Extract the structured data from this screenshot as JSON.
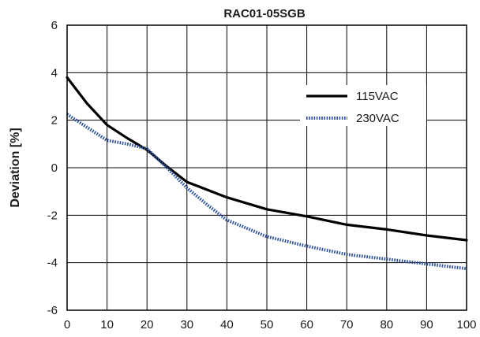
{
  "chart_data": {
    "type": "line",
    "title": "RAC01-05SGB",
    "xlabel": "",
    "ylabel": "Deviation [%]",
    "xlim": [
      0,
      100
    ],
    "ylim": [
      -6,
      6
    ],
    "x_ticks": [
      "0",
      "10",
      "20",
      "30",
      "40",
      "50",
      "60",
      "70",
      "80",
      "90",
      "100"
    ],
    "y_ticks": [
      "6",
      "4",
      "2",
      "0",
      "-2",
      "-4",
      "-6"
    ],
    "grid": true,
    "legend_position": "top-right",
    "series": [
      {
        "name": "115VAC",
        "color": "#000000",
        "style": "solid",
        "x": [
          0,
          5,
          10,
          15,
          20,
          25,
          30,
          40,
          50,
          60,
          70,
          80,
          90,
          100
        ],
        "y": [
          3.8,
          2.7,
          1.8,
          1.25,
          0.75,
          0.05,
          -0.6,
          -1.25,
          -1.75,
          -2.05,
          -2.4,
          -2.6,
          -2.85,
          -3.05
        ]
      },
      {
        "name": "230VAC",
        "color": "#2b4f9c",
        "style": "dotted",
        "x": [
          0,
          5,
          10,
          15,
          20,
          25,
          30,
          35,
          40,
          50,
          60,
          70,
          80,
          90,
          100
        ],
        "y": [
          2.25,
          1.7,
          1.15,
          1.0,
          0.8,
          0.0,
          -0.85,
          -1.55,
          -2.2,
          -2.9,
          -3.3,
          -3.65,
          -3.85,
          -4.05,
          -4.25
        ]
      }
    ]
  }
}
